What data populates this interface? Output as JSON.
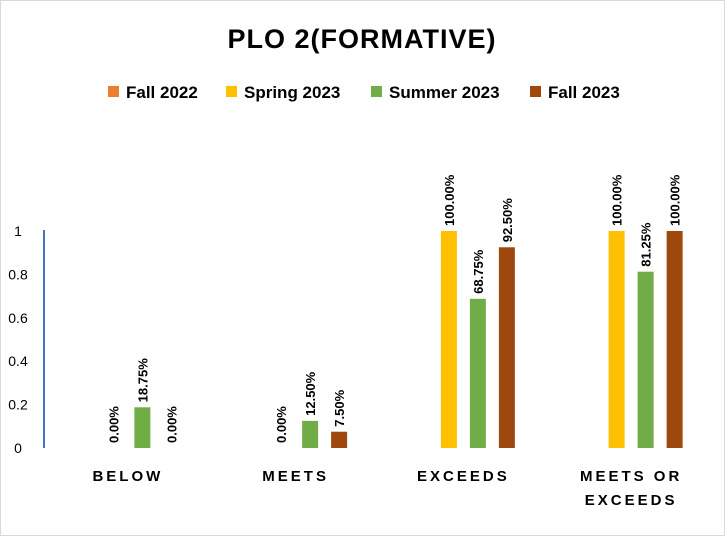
{
  "chart_data": {
    "type": "bar",
    "title": "PLO 2(FORMATIVE)",
    "categories": [
      [
        "BELOW"
      ],
      [
        "MEETS"
      ],
      [
        "EXCEEDS"
      ],
      [
        "MEETS OR",
        "EXCEEDS"
      ]
    ],
    "series": [
      {
        "name": "Fall 2022",
        "color": "#ED7D31",
        "values": [
          null,
          null,
          null,
          null
        ],
        "labels": [
          "",
          "",
          "",
          ""
        ]
      },
      {
        "name": "Spring 2023",
        "color": "#FFC000",
        "values": [
          0,
          0,
          1.0,
          1.0
        ],
        "labels": [
          "0.00%",
          "0.00%",
          "100.00%",
          "100.00%"
        ]
      },
      {
        "name": "Summer 2023",
        "color": "#70AD47",
        "values": [
          0.1875,
          0.125,
          0.6875,
          0.8125
        ],
        "labels": [
          "18.75%",
          "12.50%",
          "68.75%",
          "81.25%"
        ]
      },
      {
        "name": "Fall 2023",
        "color": "#9E480E",
        "values": [
          0,
          0.075,
          0.925,
          1.0
        ],
        "labels": [
          "0.00%",
          "7.50%",
          "92.50%",
          "100.00%"
        ]
      }
    ],
    "yticks": [
      "0",
      "0.2",
      "0.4",
      "0.6",
      "0.8",
      "1"
    ],
    "ylim": [
      0,
      1
    ],
    "grid": false,
    "legend": "top"
  }
}
